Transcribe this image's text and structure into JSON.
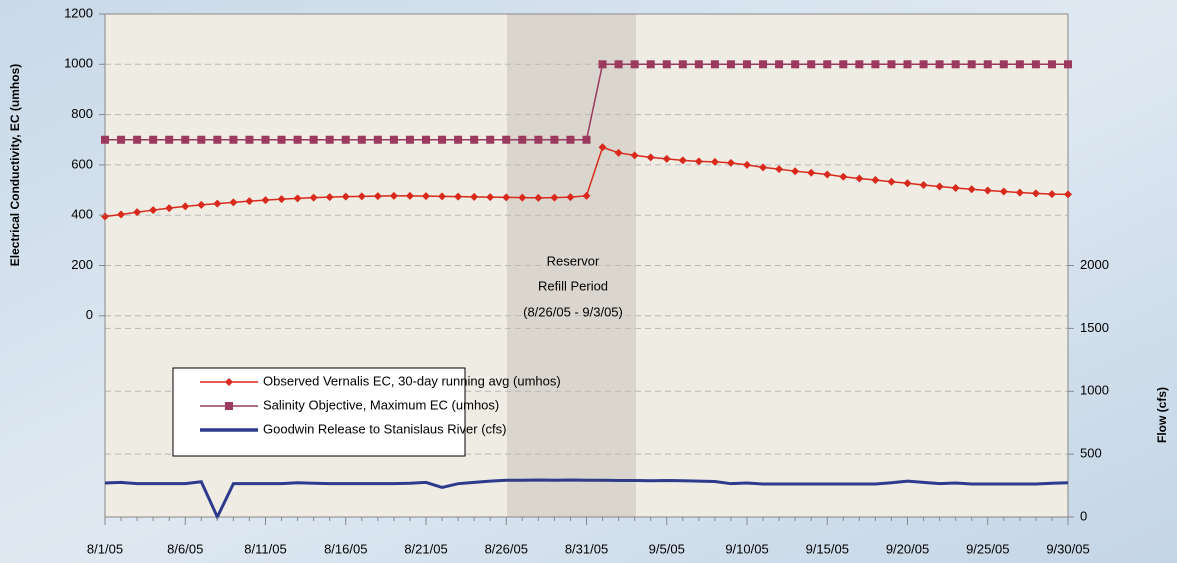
{
  "chart_data": {
    "type": "line",
    "y_label": "Electrical Conductivity, EC (umhos)",
    "y2_label": "Flow (cfs)",
    "annotation": [
      "Reservor",
      "Refill Period",
      "(8/26/05 - 9/3/05)"
    ],
    "categories": [
      "8/1/05",
      null,
      null,
      null,
      null,
      "8/6/05",
      null,
      null,
      null,
      null,
      "8/11/05",
      null,
      null,
      null,
      null,
      "8/16/05",
      null,
      null,
      null,
      null,
      "8/21/05",
      null,
      null,
      null,
      null,
      "8/26/05",
      null,
      null,
      null,
      null,
      "8/31/05",
      null,
      null,
      null,
      null,
      "9/5/05",
      null,
      null,
      null,
      null,
      "9/10/05",
      null,
      null,
      null,
      null,
      "9/15/05",
      null,
      null,
      null,
      null,
      "9/20/05",
      null,
      null,
      null,
      null,
      "9/25/05",
      null,
      null,
      null,
      null,
      "9/30/05"
    ],
    "ylim": [
      -800,
      1200
    ],
    "yticks": [
      0,
      200,
      400,
      600,
      800,
      1000,
      1200
    ],
    "y2lim": [
      0,
      4000
    ],
    "y2ticks": [
      0,
      500,
      1000,
      1500,
      2000
    ],
    "grid": true,
    "series": [
      {
        "name": "Observed Vernalis EC, 30-day running avg (umhos)",
        "color": "#d9291c",
        "marker": "diamond",
        "values": [
          395,
          403,
          412,
          420,
          428,
          435,
          441,
          446,
          451,
          456,
          460,
          464,
          467,
          470,
          472,
          474,
          475,
          476,
          477,
          477,
          476,
          475,
          474,
          473,
          472,
          471,
          470,
          469,
          470,
          472,
          477,
          670,
          648,
          638,
          630,
          624,
          618,
          614,
          612,
          608,
          600,
          590,
          583,
          575,
          569,
          562,
          553,
          546,
          540,
          533,
          527,
          520,
          514,
          508,
          503,
          498,
          494,
          490,
          487,
          484,
          483
        ]
      },
      {
        "name": "Salinity Objective, Maximum EC (umhos)",
        "color": "#9b3a5e",
        "marker": "square",
        "values": [
          700,
          700,
          700,
          700,
          700,
          700,
          700,
          700,
          700,
          700,
          700,
          700,
          700,
          700,
          700,
          700,
          700,
          700,
          700,
          700,
          700,
          700,
          700,
          700,
          700,
          700,
          700,
          700,
          700,
          700,
          700,
          1000,
          1000,
          1000,
          1000,
          1000,
          1000,
          1000,
          1000,
          1000,
          1000,
          1000,
          1000,
          1000,
          1000,
          1000,
          1000,
          1000,
          1000,
          1000,
          1000,
          1000,
          1000,
          1000,
          1000,
          1000,
          1000,
          1000,
          1000,
          1000,
          1000
        ]
      },
      {
        "name": "Goodwin Release to Stanislaus River (cfs)",
        "color": "#2e3a8c",
        "marker": "none",
        "axis": "y2",
        "values": [
          270,
          275,
          265,
          265,
          265,
          265,
          280,
          0,
          265,
          265,
          265,
          265,
          272,
          268,
          265,
          265,
          265,
          265,
          265,
          268,
          275,
          235,
          265,
          275,
          285,
          292,
          292,
          294,
          292,
          294,
          292,
          292,
          290,
          290,
          288,
          290,
          288,
          285,
          282,
          265,
          270,
          262,
          262,
          262,
          262,
          262,
          262,
          262,
          262,
          272,
          285,
          275,
          265,
          270,
          262,
          262,
          262,
          262,
          262,
          268,
          272
        ]
      }
    ]
  }
}
